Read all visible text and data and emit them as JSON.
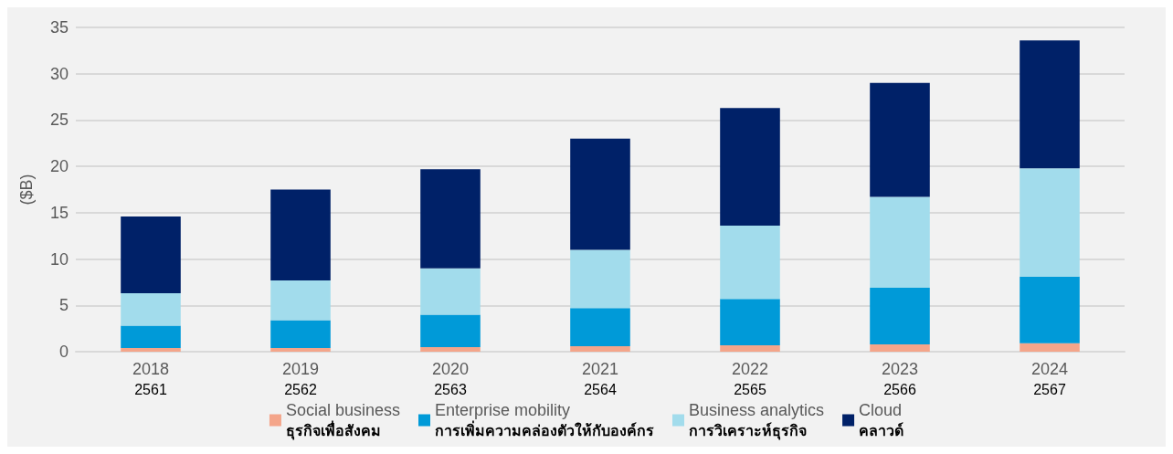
{
  "chart_data": {
    "type": "bar",
    "stacked": true,
    "ylabel": "($B)",
    "categories": [
      "2018\n2561",
      "2019\n2562",
      "2020\n2563",
      "2021\n2564",
      "2022\n2565",
      "2023\n2566",
      "2024\n2567"
    ],
    "series": [
      {
        "name": "Social business\nธุรกิจเพื่อสังคม",
        "color": "#f4a58a",
        "values": [
          0.4,
          0.4,
          0.5,
          0.6,
          0.7,
          0.8,
          0.9
        ]
      },
      {
        "name": "Enterprise mobility\nการเพิ่มความคล่องตัวให้กับองค์กร",
        "color": "#009ad8",
        "values": [
          2.4,
          3.0,
          3.5,
          4.1,
          5.0,
          6.1,
          7.2
        ]
      },
      {
        "name": "Business analytics\nการวิเคราะห์ธุรกิจ",
        "color": "#a2dcec",
        "values": [
          3.5,
          4.3,
          5.0,
          6.3,
          7.9,
          9.8,
          11.7
        ]
      },
      {
        "name": "Cloud\nคลาวด์",
        "color": "#002168",
        "values": [
          8.3,
          9.8,
          10.7,
          12.0,
          12.7,
          12.3,
          13.8
        ]
      }
    ],
    "ylim": [
      0,
      35
    ],
    "yticks": [
      0,
      5,
      10,
      15,
      20,
      25,
      30,
      35
    ],
    "grid": "y",
    "legend": "bottom"
  }
}
